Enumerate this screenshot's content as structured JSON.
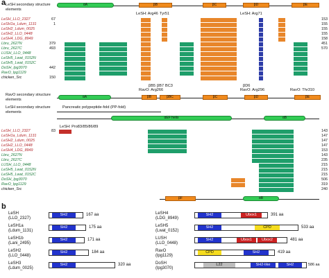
{
  "panel_a": {
    "label": "a",
    "top_ss_label": "LeSH secondary structure elements",
    "top_ss_elements": [
      "αA",
      "βB",
      "βC",
      "βD",
      "βE"
    ],
    "top_annotations": [
      "LeSH: Arg46",
      "Tyr51",
      "LeSH: Arg71"
    ],
    "block1_rows": [
      {
        "name": "LeSH_LLO_2327",
        "start": "67",
        "end": "153",
        "color": "red"
      },
      {
        "name": "LeSH1a_Ldum_1131",
        "start": "1",
        "end": "155",
        "color": "red"
      },
      {
        "name": "LeSH2_Ldum_0025",
        "start": "",
        "end": "155",
        "color": "red"
      },
      {
        "name": "LeSH2_LLO_0448",
        "start": "",
        "end": "155",
        "color": "red"
      },
      {
        "name": "LeSH4_LDG_8949",
        "start": "",
        "end": "158",
        "color": "red"
      },
      {
        "name": "Lbru_2627N",
        "start": "379",
        "end": "451",
        "color": "green"
      },
      {
        "name": "Lbru_2627C",
        "start": "493",
        "end": "570",
        "color": "green"
      },
      {
        "name": "LUSH_LLO_0448",
        "start": "",
        "end": "",
        "color": "green"
      },
      {
        "name": "LeSH5_Lwat_0152N",
        "start": "",
        "end": "",
        "color": "green"
      },
      {
        "name": "LeSH5_Lwat_0152C",
        "start": "",
        "end": "",
        "color": "green"
      },
      {
        "name": "DoSH_lpg3070",
        "start": "442",
        "end": "",
        "color": "green"
      },
      {
        "name": "RavO_lpg1129",
        "start": "",
        "end": "",
        "color": "green"
      },
      {
        "name": "chicken_Src",
        "start": "150",
        "end": "",
        "color": "black"
      }
    ],
    "mid_annotations": [
      "βB5",
      "βB7",
      "BC3",
      "RavO: Arg266",
      "βD6",
      "RavO: Arg296",
      "RavO: Thr310"
    ],
    "ravo_ss_label": "RavO secondary structure elements",
    "ravo_ss_elements": [
      "αA",
      "βB",
      "βBC",
      "βC",
      "βD",
      "βE"
    ],
    "pp_fold_label": "Pancreatic polypeptide-fold (PP-fold)",
    "pp_helix_label": "αEF helix",
    "pp_strand_label": "αB",
    "pro_annotation": "LeSH: Pro83/85/86/89",
    "block2_rows": [
      {
        "name": "LeSH_LLO_2327",
        "start": "83",
        "end": "143"
      },
      {
        "name": "LeSH1a_Ldum_1131",
        "start": "",
        "end": "147"
      },
      {
        "name": "LeSH2_Ldum_0025",
        "start": "",
        "end": "147"
      },
      {
        "name": "LeSH2_LLO_0448",
        "start": "",
        "end": "147"
      },
      {
        "name": "LeSH4_LDG_8949",
        "start": "",
        "end": "153"
      },
      {
        "name": "Lbru_2627N",
        "start": "",
        "end": "143"
      },
      {
        "name": "Lbru_2627C",
        "start": "",
        "end": "235"
      },
      {
        "name": "LUSH_LLO_0448",
        "start": "",
        "end": "215"
      },
      {
        "name": "LeSH5_Lwat_0152N",
        "start": "",
        "end": "215"
      },
      {
        "name": "LeSH5_Lwat_0152C",
        "start": "",
        "end": "215"
      },
      {
        "name": "DoSH_lpg3070",
        "start": "",
        "end": "506"
      },
      {
        "name": "RavO_lpg1129",
        "start": "",
        "end": "319"
      },
      {
        "name": "chicken_Src",
        "start": "",
        "end": "240"
      }
    ],
    "bottom_ss_elements": [
      "βF",
      "αB"
    ]
  },
  "panel_b": {
    "label": "b",
    "proteins": [
      {
        "name": "LeSH",
        "id": "(LLO_2327)",
        "len": "167 aa",
        "domains": [
          "SH2"
        ]
      },
      {
        "name": "LeSH1a",
        "id": "(Ldum_1131)",
        "len": "175 aa",
        "domains": [
          "SH2"
        ]
      },
      {
        "name": "LeSH1b",
        "id": "(Lani_2495)",
        "len": "171 aa",
        "domains": [
          "SH2"
        ]
      },
      {
        "name": "LeSH2",
        "id": "(LLO_0448)",
        "len": "184 aa",
        "domains": [
          "SH2"
        ]
      },
      {
        "name": "LeSH3",
        "id": "(Ldum_0025)",
        "len": "320 aa",
        "domains": [
          "SH2"
        ]
      },
      {
        "name": "LeSH4",
        "id": "(LDG_8949)",
        "len": "391 aa",
        "domains": [
          "SH2",
          "Ubox1"
        ]
      },
      {
        "name": "LeSH5",
        "id": "(Lwat_0152)",
        "len": "533 aa",
        "domains": [
          "SH2",
          "CPD"
        ]
      },
      {
        "name": "LUSH",
        "id": "(LLO_0448)",
        "len": "481 aa",
        "domains": [
          "SH2",
          "Ubox1",
          "Ubox2"
        ]
      },
      {
        "name": "RavO",
        "id": "(lpg1129)",
        "len": "419 aa",
        "domains": [
          "CPD",
          "SH2"
        ]
      },
      {
        "name": "DoSH",
        "id": "(lpg3070)",
        "len": "586 aa",
        "domains": [
          "L22",
          "SH2-like",
          "SH2"
        ]
      }
    ]
  },
  "colors": {
    "helix": "#33cc55",
    "strand": "#f08a1c",
    "conserved_green": "#1e9e6a",
    "conserved_orange": "#e8862a",
    "conserved_blue": "#2e3da8",
    "sh2": "#2233cc",
    "ubox": "#cc2222",
    "cpd": "#f5dc1e",
    "l22": "#bdbdbd"
  }
}
